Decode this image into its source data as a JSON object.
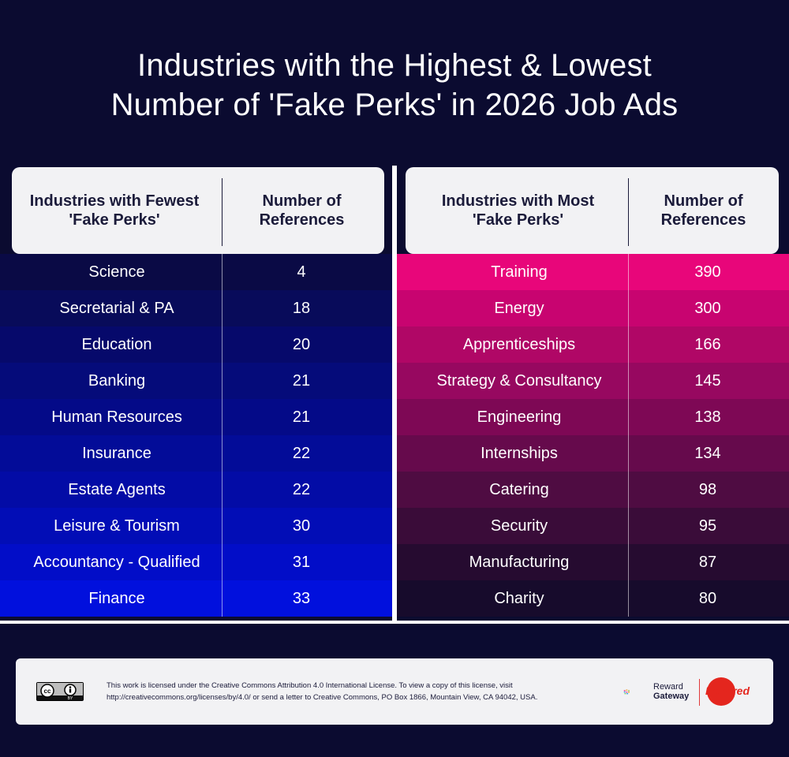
{
  "title": {
    "line1": "Industries with the Highest & Lowest",
    "line2": "Number of 'Fake Perks' in 2026 Job Ads"
  },
  "chart_data": [
    {
      "type": "table",
      "title": "Industries with Fewest 'Fake Perks'",
      "columns": [
        "Industries with Fewest 'Fake Perks'",
        "Number of References"
      ],
      "categories": [
        "Science",
        "Secretarial & PA",
        "Education",
        "Banking",
        "Human Resources",
        "Insurance",
        "Estate Agents",
        "Leisure & Tourism",
        "Accountancy - Qualified",
        "Finance"
      ],
      "values": [
        4,
        18,
        20,
        21,
        21,
        22,
        22,
        30,
        31,
        33
      ],
      "colors": [
        "#0a0a45",
        "#080b5a",
        "#06096b",
        "#050b7a",
        "#040a88",
        "#030c98",
        "#030ca6",
        "#020db6",
        "#020dc8",
        "#0110dd"
      ]
    },
    {
      "type": "table",
      "title": "Industries with Most 'Fake Perks'",
      "columns": [
        "Industries with Most 'Fake Perks'",
        "Number of References"
      ],
      "categories": [
        "Training",
        "Energy",
        "Apprenticeships",
        "Strategy & Consultancy",
        "Engineering",
        "Internships",
        "Catering",
        "Security",
        "Manufacturing",
        "Charity"
      ],
      "values": [
        390,
        300,
        166,
        145,
        138,
        134,
        98,
        95,
        87,
        80
      ],
      "colors": [
        "#e8067a",
        "#c80470",
        "#b00766",
        "#970860",
        "#7e0855",
        "#660a4c",
        "#4f0c42",
        "#3a0c39",
        "#260b30",
        "#170b2c"
      ]
    }
  ],
  "left_header": {
    "col1": "Industries with Fewest 'Fake Perks'",
    "col2": "Number of References"
  },
  "right_header": {
    "col1": "Industries with Most 'Fake Perks'",
    "col2": "Number of References"
  },
  "footer": {
    "license_text": "This work is licensed under the Creative Commons Attribution 4.0 International License. To view a copy of this license, visit http://creativecommons.org/licenses/by/4.0/ or send a letter to Creative Commons, PO Box 1866, Mountain View, CA 94042, USA.",
    "cc_badge_label": "BY",
    "reward_gateway_line1": "Reward",
    "reward_gateway_line2": "Gateway",
    "edenred_label": "Edenred"
  }
}
